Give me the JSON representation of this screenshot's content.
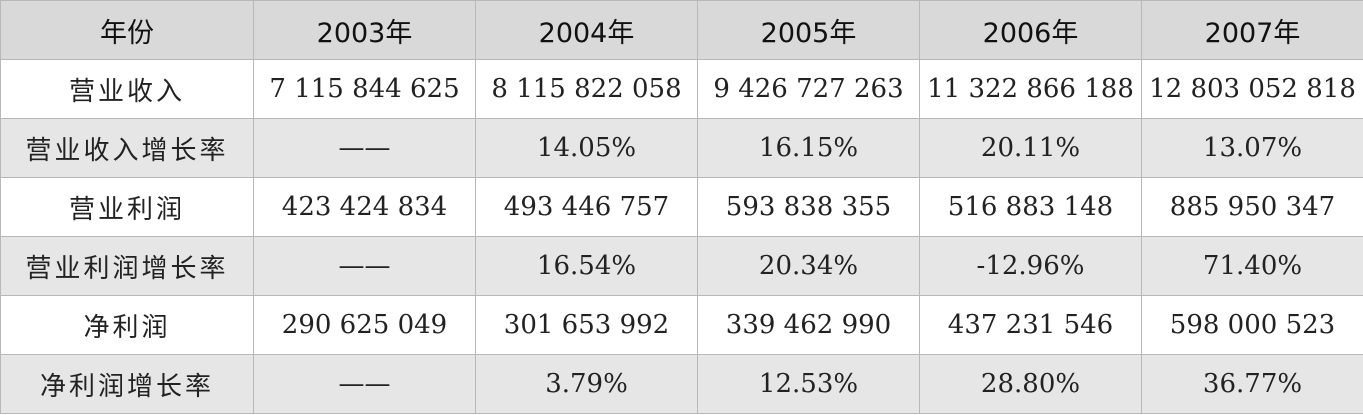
{
  "table": {
    "header": [
      "年份",
      "2003年",
      "2004年",
      "2005年",
      "2006年",
      "2007年"
    ],
    "rows": [
      [
        "营业收入",
        "7 115 844 625",
        "8 115 822 058",
        "9 426 727 263",
        "11 322 866 188",
        "12 803 052 818"
      ],
      [
        "营业收入增长率",
        "——",
        "14.05%",
        "16.15%",
        "20.11%",
        "13.07%"
      ],
      [
        "营业利润",
        "423 424 834",
        "493 446 757",
        "593 838 355",
        "516 883 148",
        "885 950 347"
      ],
      [
        "营业利润增长率",
        "——",
        "16.54%",
        "20.34%",
        "-12.96%",
        "71.40%"
      ],
      [
        "净利润",
        "290 625 049",
        "301 653 992",
        "339 462 990",
        "437 231 546",
        "598 000 523"
      ],
      [
        "净利润增长率",
        "——",
        "3.79%",
        "12.53%",
        "28.80%",
        "36.77%"
      ]
    ]
  }
}
